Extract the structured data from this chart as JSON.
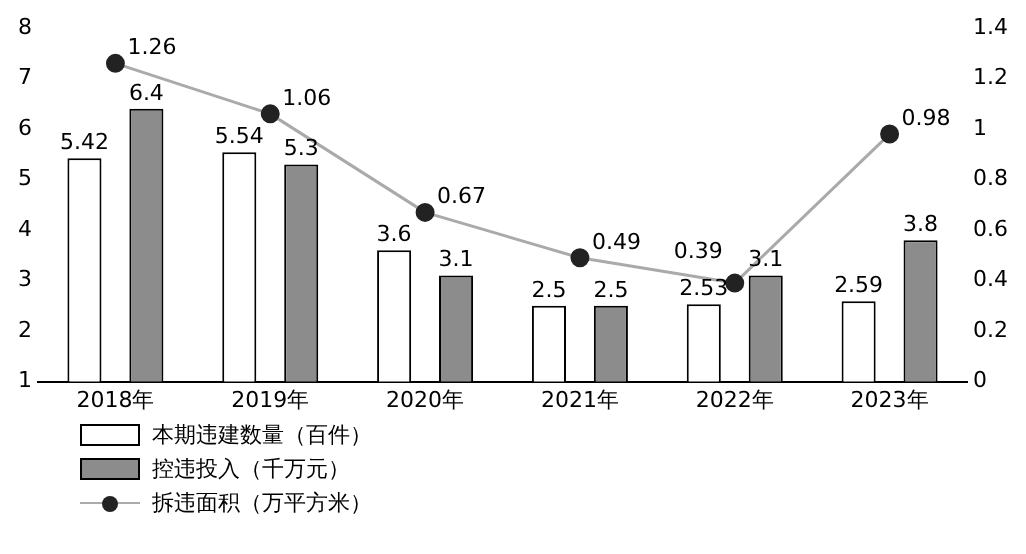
{
  "chart_data": {
    "type": "bar",
    "categories": [
      "2018年",
      "2019年",
      "2020年",
      "2021年",
      "2022年",
      "2023年"
    ],
    "series": [
      {
        "name": "本期违建数量（百件）",
        "color": "#ffffff",
        "values": [
          5.42,
          5.54,
          3.6,
          2.5,
          2.53,
          2.59
        ]
      },
      {
        "name": "控违投入（千万元）",
        "color": "#8c8c8c",
        "values": [
          6.4,
          5.3,
          3.1,
          2.5,
          3.1,
          3.8
        ]
      },
      {
        "name": "拆违面积（万平方米）",
        "type": "line",
        "axis": "y2",
        "color": "#222222",
        "values": [
          1.26,
          1.06,
          0.67,
          0.49,
          0.39,
          0.98
        ]
      }
    ],
    "ylim": [
      1,
      8
    ],
    "yticks": [
      1,
      2,
      3,
      4,
      5,
      6,
      7,
      8
    ],
    "y2lim": [
      0,
      1.4
    ],
    "y2ticks": [
      0,
      0.2,
      0.4,
      0.6,
      0.8,
      1,
      1.2,
      1.4
    ],
    "data_labels": true,
    "legend": "bottom left",
    "marker": "circle",
    "grid": false
  }
}
